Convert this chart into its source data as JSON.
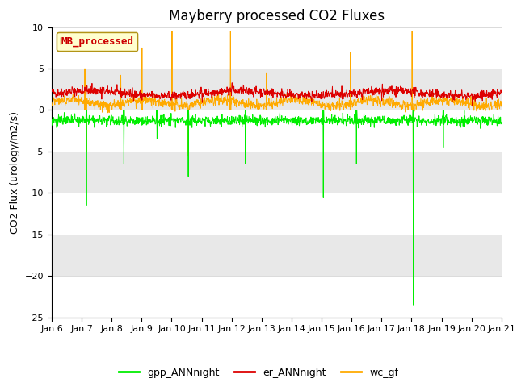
{
  "title": "Mayberry processed CO2 Fluxes",
  "ylabel": "CO2 Flux (urology/m2/s)",
  "ylim": [
    -25,
    10
  ],
  "yticks": [
    -25,
    -20,
    -15,
    -10,
    -5,
    0,
    5,
    10
  ],
  "x_tick_labels": [
    "Jan 6",
    "Jan 7",
    "Jan 8",
    "Jan 9",
    "Jan 10",
    "Jan 11",
    "Jan 12",
    "Jan 13",
    "Jan 14",
    "Jan 15",
    "Jan 16",
    "Jan 17",
    "Jan 18",
    "Jan 19",
    "Jan 20",
    "Jan 21"
  ],
  "legend_label": "MB_processed",
  "legend_facecolor": "#ffffcc",
  "legend_edgecolor": "#aa8800",
  "legend_text_color": "#cc0000",
  "series": {
    "gpp_ANNnight": {
      "color": "#00ee00",
      "label": "gpp_ANNnight"
    },
    "er_ANNnight": {
      "color": "#dd0000",
      "label": "er_ANNnight"
    },
    "wc_gf": {
      "color": "#ffaa00",
      "label": "wc_gf"
    }
  },
  "band_colors": [
    "#ffffff",
    "#e8e8e8"
  ],
  "title_fontsize": 12,
  "axis_label_fontsize": 9,
  "tick_fontsize": 8,
  "seed": 42
}
